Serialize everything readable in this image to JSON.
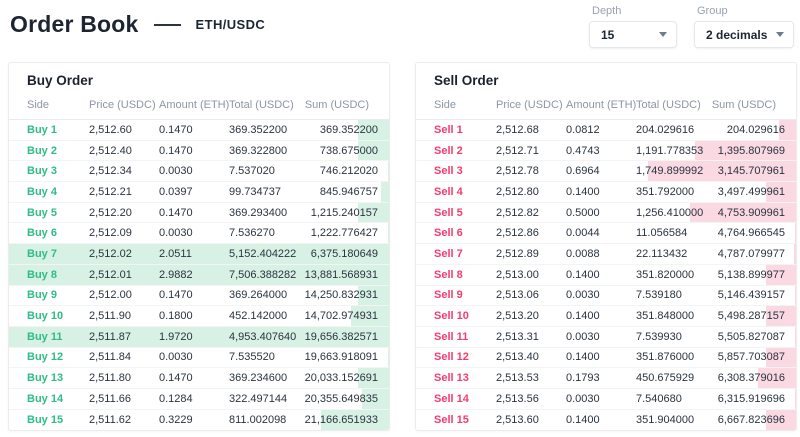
{
  "header": {
    "title": "Order Book",
    "pair": "ETH/USDC"
  },
  "controls": {
    "depth": {
      "label": "Depth",
      "value": "15"
    },
    "group": {
      "label": "Group",
      "value": "2 decimals"
    }
  },
  "columns": [
    "Side",
    "Price (USDC)",
    "Amount (ETH)",
    "Total (USDC)",
    "Sum (USDC)"
  ],
  "colors": {
    "buy": "#2EBD85",
    "sell": "#F43C6E",
    "buy_bar": "#D8F1E5",
    "sell_bar": "#FBD9E3"
  },
  "depth_bar": {
    "full_scale_total": 4500
  },
  "buy": {
    "title": "Buy Order",
    "rows": [
      {
        "side": "Buy 1",
        "price": "2,512.60",
        "amount": "0.1470",
        "total": "369.352200",
        "sum": "369.352200"
      },
      {
        "side": "Buy 2",
        "price": "2,512.40",
        "amount": "0.1470",
        "total": "369.322800",
        "sum": "738.675000"
      },
      {
        "side": "Buy 3",
        "price": "2,512.34",
        "amount": "0.0030",
        "total": "7.537020",
        "sum": "746.212020"
      },
      {
        "side": "Buy 4",
        "price": "2,512.21",
        "amount": "0.0397",
        "total": "99.734737",
        "sum": "845.946757"
      },
      {
        "side": "Buy 5",
        "price": "2,512.20",
        "amount": "0.1470",
        "total": "369.293400",
        "sum": "1,215.240157"
      },
      {
        "side": "Buy 6",
        "price": "2,512.09",
        "amount": "0.0030",
        "total": "7.536270",
        "sum": "1,222.776427"
      },
      {
        "side": "Buy 7",
        "price": "2,512.02",
        "amount": "2.0511",
        "total": "5,152.404222",
        "sum": "6,375.180649"
      },
      {
        "side": "Buy 8",
        "price": "2,512.01",
        "amount": "2.9882",
        "total": "7,506.388282",
        "sum": "13,881.568931"
      },
      {
        "side": "Buy 9",
        "price": "2,512.00",
        "amount": "0.1470",
        "total": "369.264000",
        "sum": "14,250.832931"
      },
      {
        "side": "Buy 10",
        "price": "2,511.90",
        "amount": "0.1800",
        "total": "452.142000",
        "sum": "14,702.974931"
      },
      {
        "side": "Buy 11",
        "price": "2,511.87",
        "amount": "1.9720",
        "total": "4,953.407640",
        "sum": "19,656.382571"
      },
      {
        "side": "Buy 12",
        "price": "2,511.84",
        "amount": "0.0030",
        "total": "7.535520",
        "sum": "19,663.918091"
      },
      {
        "side": "Buy 13",
        "price": "2,511.80",
        "amount": "0.1470",
        "total": "369.234600",
        "sum": "20,033.152691"
      },
      {
        "side": "Buy 14",
        "price": "2,511.66",
        "amount": "0.1284",
        "total": "322.497144",
        "sum": "20,355.649835"
      },
      {
        "side": "Buy 15",
        "price": "2,511.62",
        "amount": "0.3229",
        "total": "811.002098",
        "sum": "21,166.651933"
      }
    ]
  },
  "sell": {
    "title": "Sell Order",
    "rows": [
      {
        "side": "Sell 1",
        "price": "2,512.68",
        "amount": "0.0812",
        "total": "204.029616",
        "sum": "204.029616"
      },
      {
        "side": "Sell 2",
        "price": "2,512.71",
        "amount": "0.4743",
        "total": "1,191.778353",
        "sum": "1,395.807969"
      },
      {
        "side": "Sell 3",
        "price": "2,512.78",
        "amount": "0.6964",
        "total": "1,749.899992",
        "sum": "3,145.707961"
      },
      {
        "side": "Sell 4",
        "price": "2,512.80",
        "amount": "0.1400",
        "total": "351.792000",
        "sum": "3,497.499961"
      },
      {
        "side": "Sell 5",
        "price": "2,512.82",
        "amount": "0.5000",
        "total": "1,256.410000",
        "sum": "4,753.909961"
      },
      {
        "side": "Sell 6",
        "price": "2,512.86",
        "amount": "0.0044",
        "total": "11.056584",
        "sum": "4,764.966545"
      },
      {
        "side": "Sell 7",
        "price": "2,512.89",
        "amount": "0.0088",
        "total": "22.113432",
        "sum": "4,787.079977"
      },
      {
        "side": "Sell 8",
        "price": "2,513.00",
        "amount": "0.1400",
        "total": "351.820000",
        "sum": "5,138.899977"
      },
      {
        "side": "Sell 9",
        "price": "2,513.06",
        "amount": "0.0030",
        "total": "7.539180",
        "sum": "5,146.439157"
      },
      {
        "side": "Sell 10",
        "price": "2,513.20",
        "amount": "0.1400",
        "total": "351.848000",
        "sum": "5,498.287157"
      },
      {
        "side": "Sell 11",
        "price": "2,513.31",
        "amount": "0.0030",
        "total": "7.539930",
        "sum": "5,505.827087"
      },
      {
        "side": "Sell 12",
        "price": "2,513.40",
        "amount": "0.1400",
        "total": "351.876000",
        "sum": "5,857.703087"
      },
      {
        "side": "Sell 13",
        "price": "2,513.53",
        "amount": "0.1793",
        "total": "450.675929",
        "sum": "6,308.379016"
      },
      {
        "side": "Sell 14",
        "price": "2,513.56",
        "amount": "0.0030",
        "total": "7.540680",
        "sum": "6,315.919696"
      },
      {
        "side": "Sell 15",
        "price": "2,513.60",
        "amount": "0.1400",
        "total": "351.904000",
        "sum": "6,667.823696"
      }
    ]
  }
}
